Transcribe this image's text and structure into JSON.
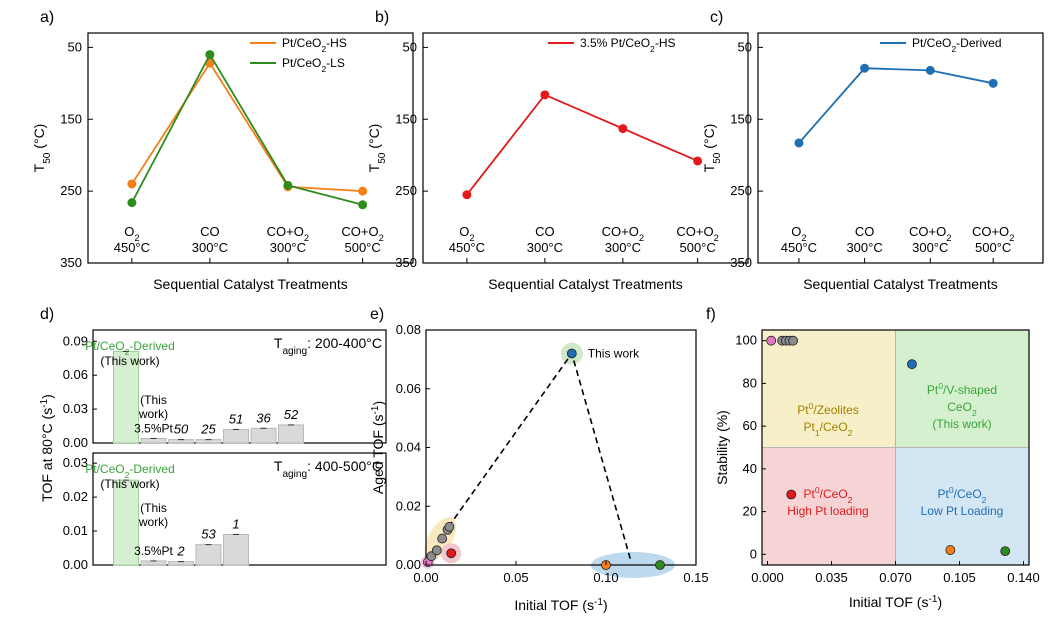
{
  "colors": {
    "orange": "#f57f17",
    "green": "#2e8b1e",
    "red": "#e31a1c",
    "blue": "#1f6fb4",
    "gray": "#d9d9d9",
    "yellow_zone": "#f7efc7",
    "green_zone": "#d4f0cf",
    "red_zone": "#f6d4d6",
    "blue_zone": "#d3e6f4",
    "label_green": "#3aa43a",
    "label_red": "#e31a1c",
    "label_blue": "#1f6fb4",
    "label_gold": "#a08000"
  },
  "chart_data": [
    {
      "panel": "a)",
      "type": "line",
      "categories": [
        [
          "O2",
          "450°C"
        ],
        [
          "CO",
          "300°C"
        ],
        [
          "CO+O2",
          "300°C"
        ],
        [
          "CO+O2",
          "500°C"
        ]
      ],
      "category_text": [
        "O₂",
        "450°C",
        "CO",
        "300°C",
        "CO+O₂",
        "300°C",
        "CO+O₂",
        "500°C"
      ],
      "series": [
        {
          "name": "Pt/CeO₂-HS",
          "values": [
            240,
            72,
            244,
            250
          ]
        },
        {
          "name": "Pt/CeO₂-LS",
          "values": [
            266,
            60,
            242,
            269
          ]
        }
      ],
      "ylabel": "T₅₀ (°C)",
      "xlabel": "Sequential Catalyst Treatments",
      "ylim": [
        350,
        30
      ],
      "yticks": [
        "50",
        "150",
        "250",
        "350"
      ],
      "yinverted": true
    },
    {
      "panel": "b)",
      "type": "line",
      "categories_text": [
        "O₂",
        "450°C",
        "CO",
        "300°C",
        "CO+O₂",
        "300°C",
        "CO+O₂",
        "500°C"
      ],
      "series": [
        {
          "name": "3.5% Pt/CeO₂-HS",
          "values": [
            255,
            116,
            163,
            208
          ]
        }
      ],
      "ylabel": "T₅₀ (°C)",
      "xlabel": "Sequential Catalyst Treatments",
      "ylim": [
        350,
        30
      ],
      "yticks": [
        "50",
        "150",
        "250",
        "350"
      ]
    },
    {
      "panel": "c)",
      "type": "line",
      "categories_text": [
        "O₂",
        "450°C",
        "CO",
        "300°C",
        "CO+O₂",
        "300°C",
        "CO+O₂",
        "500°C"
      ],
      "series": [
        {
          "name": "Pt/CeO₂-Derived",
          "values": [
            183,
            79,
            82,
            100
          ]
        }
      ],
      "ylabel": "T₅₀ (°C)",
      "xlabel": "Sequential Catalyst Treatments",
      "ylim": [
        350,
        30
      ],
      "yticks": [
        "50",
        "150",
        "250",
        "350"
      ]
    },
    {
      "panel": "d)",
      "type": "bar",
      "ylabel": "TOF at 80°C (s⁻¹)",
      "top": {
        "condition": "T_aging: 200-400°C",
        "condition_main": "T",
        "condition_sub": "aging",
        "condition_rest": ": 200-400°C",
        "yticks": [
          "0.00",
          "0.03",
          "0.06",
          "0.09"
        ],
        "ylim": [
          0,
          0.1
        ],
        "values": [
          0.081,
          0.004,
          0.003,
          0.003,
          0.012,
          0.013,
          0.016
        ],
        "bar_labels": [
          "",
          "3.5%Pt",
          "50",
          "25",
          "51",
          "36",
          "52"
        ],
        "highlight_label": [
          "Pt/CeO₂-Derived",
          "(This work)"
        ],
        "note": [
          "(This",
          "work)"
        ]
      },
      "bottom": {
        "condition": "T_aging: 400-500°C",
        "condition_main": "T",
        "condition_sub": "aging",
        "condition_rest": ": 400-500°C",
        "yticks": [
          "0.00",
          "0.01",
          "0.02",
          "0.03"
        ],
        "ylim": [
          0,
          0.033
        ],
        "values": [
          0.025,
          0.0012,
          0.001,
          0.006,
          0.009
        ],
        "bar_labels": [
          "",
          "3.5%Pt",
          "2",
          "53",
          "1"
        ],
        "highlight_label": [
          "Pt/CeO₂-Derived",
          "(This work)"
        ],
        "note": [
          "(This",
          "work)"
        ]
      }
    },
    {
      "panel": "e)",
      "type": "scatter",
      "xlabel": "Initial TOF (s⁻¹)",
      "ylabel": "Aged TOF (s⁻¹)",
      "xlim": [
        0,
        0.15
      ],
      "ylim": [
        0,
        0.08
      ],
      "xticks": [
        "0.00",
        "0.05",
        "0.10",
        "0.15"
      ],
      "yticks": [
        "0.00",
        "0.02",
        "0.04",
        "0.06",
        "0.08"
      ],
      "annotation": "This work",
      "points": [
        {
          "x": 0.081,
          "y": 0.072,
          "color": "blue"
        },
        {
          "x": 0.014,
          "y": 0.004,
          "color": "red"
        },
        {
          "x": 0.001,
          "y": 0.001,
          "color": "magenta"
        },
        {
          "x": 0.003,
          "y": 0.003,
          "color": "gray"
        },
        {
          "x": 0.006,
          "y": 0.005,
          "color": "gray"
        },
        {
          "x": 0.009,
          "y": 0.009,
          "color": "gray"
        },
        {
          "x": 0.012,
          "y": 0.012,
          "color": "gray"
        },
        {
          "x": 0.013,
          "y": 0.013,
          "color": "gray"
        },
        {
          "x": 0.1,
          "y": 0.0,
          "color": "orange"
        },
        {
          "x": 0.13,
          "y": 0.0,
          "color": "green"
        }
      ]
    },
    {
      "panel": "f)",
      "type": "scatter",
      "xlabel": "Initial TOF (s⁻¹)",
      "ylabel": "Stability (%)",
      "xlim": [
        -0.003,
        0.143
      ],
      "ylim": [
        -5,
        105
      ],
      "xticks": [
        "0.000",
        "0.035",
        "0.070",
        "0.105",
        "0.140"
      ],
      "yticks": [
        "0",
        "20",
        "40",
        "60",
        "80",
        "100"
      ],
      "regions": [
        {
          "name": "yellow",
          "lines": [
            "Pt⁰/Zeolites",
            "Pt₁/CeO₂"
          ]
        },
        {
          "name": "green",
          "lines": [
            "Pt⁰/V-shaped",
            "CeO₂",
            "(This work)"
          ]
        },
        {
          "name": "red",
          "lines": [
            "Pt⁰/CeO₂",
            "High Pt loading"
          ]
        },
        {
          "name": "blue",
          "lines": [
            "Pt⁰/CeO₂",
            "Low Pt Loading"
          ]
        }
      ],
      "points": [
        {
          "x": 0.002,
          "y": 100,
          "color": "magenta"
        },
        {
          "x": 0.008,
          "y": 100,
          "color": "gray"
        },
        {
          "x": 0.01,
          "y": 100,
          "color": "gray"
        },
        {
          "x": 0.012,
          "y": 100,
          "color": "gray"
        },
        {
          "x": 0.014,
          "y": 100,
          "color": "gray"
        },
        {
          "x": 0.079,
          "y": 89,
          "color": "blue"
        },
        {
          "x": 0.013,
          "y": 28,
          "color": "red"
        },
        {
          "x": 0.1,
          "y": 2,
          "color": "orange"
        },
        {
          "x": 0.13,
          "y": 1.5,
          "color": "green"
        }
      ]
    }
  ]
}
